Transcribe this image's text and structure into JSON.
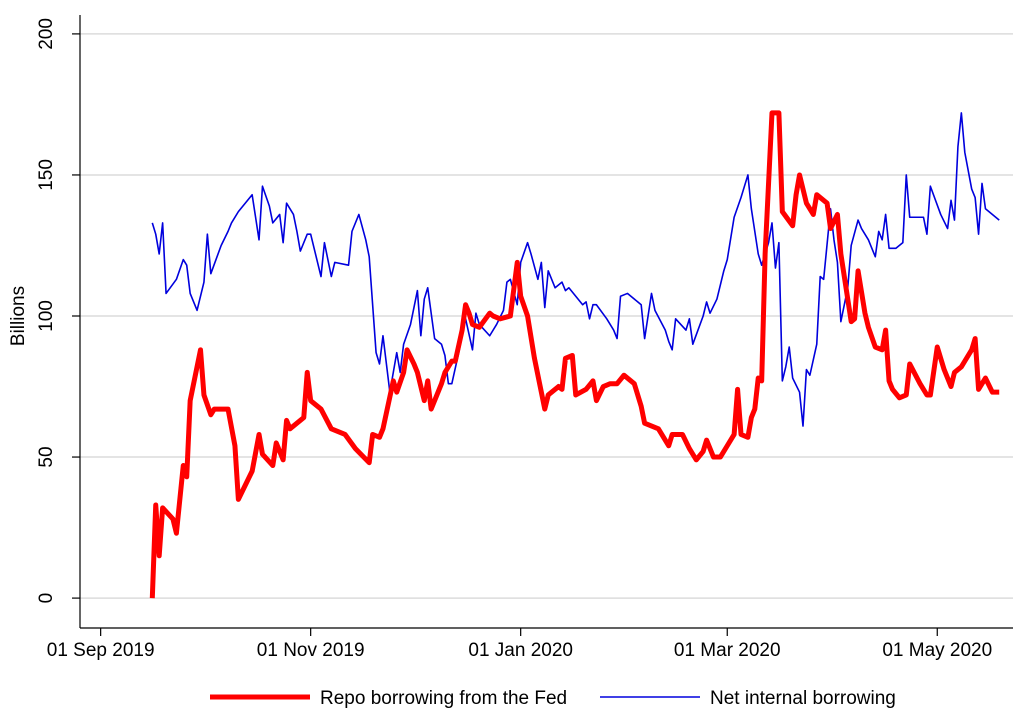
{
  "chart_data": {
    "type": "line",
    "y_label": "Billions",
    "xlim": [
      "2019-08-26",
      "2020-05-23"
    ],
    "xticks": [
      {
        "value": "2019-09-01",
        "label": "01 Sep 2019"
      },
      {
        "value": "2019-11-01",
        "label": "01 Nov 2019"
      },
      {
        "value": "2020-01-01",
        "label": "01 Jan 2020"
      },
      {
        "value": "2020-03-01",
        "label": "01 Mar 2020"
      },
      {
        "value": "2020-05-01",
        "label": "01 May 2020"
      }
    ],
    "ylim": [
      -10.6,
      206.7
    ],
    "yticks": [
      0,
      50,
      100,
      150,
      200
    ],
    "grid": true,
    "legend": "bottom",
    "series": [
      {
        "name": "Repo borrowing from the Fed",
        "color": "#ff0000",
        "width": 5,
        "x": [
          "2019-09-16",
          "2019-09-17",
          "2019-09-18",
          "2019-09-19",
          "2019-09-22",
          "2019-09-23",
          "2019-09-25",
          "2019-09-26",
          "2019-09-27",
          "2019-09-30",
          "2019-10-01",
          "2019-10-03",
          "2019-10-04",
          "2019-10-08",
          "2019-10-10",
          "2019-10-11",
          "2019-10-13",
          "2019-10-15",
          "2019-10-17",
          "2019-10-18",
          "2019-10-21",
          "2019-10-22",
          "2019-10-24",
          "2019-10-25",
          "2019-10-26",
          "2019-10-28",
          "2019-10-30",
          "2019-10-31",
          "2019-11-01",
          "2019-11-04",
          "2019-11-07",
          "2019-11-11",
          "2019-11-14",
          "2019-11-18",
          "2019-11-19",
          "2019-11-21",
          "2019-11-22",
          "2019-11-25",
          "2019-11-26",
          "2019-11-28",
          "2019-11-29",
          "2019-12-01",
          "2019-12-02",
          "2019-12-04",
          "2019-12-05",
          "2019-12-06",
          "2019-12-09",
          "2019-12-10",
          "2019-12-12",
          "2019-12-13",
          "2019-12-15",
          "2019-12-16",
          "2019-12-17",
          "2019-12-18",
          "2019-12-20",
          "2019-12-23",
          "2019-12-24",
          "2019-12-26",
          "2019-12-29",
          "2019-12-31",
          "2020-01-01",
          "2020-01-03",
          "2020-01-05",
          "2020-01-07",
          "2020-01-08",
          "2020-01-09",
          "2020-01-12",
          "2020-01-13",
          "2020-01-14",
          "2020-01-16",
          "2020-01-17",
          "2020-01-20",
          "2020-01-22",
          "2020-01-23",
          "2020-01-25",
          "2020-01-27",
          "2020-01-29",
          "2020-01-31",
          "2020-02-03",
          "2020-02-05",
          "2020-02-06",
          "2020-02-10",
          "2020-02-13",
          "2020-02-14",
          "2020-02-17",
          "2020-02-19",
          "2020-02-21",
          "2020-02-23",
          "2020-02-24",
          "2020-02-26",
          "2020-02-28",
          "2020-03-01",
          "2020-03-03",
          "2020-03-04",
          "2020-03-05",
          "2020-03-07",
          "2020-03-08",
          "2020-03-09",
          "2020-03-10",
          "2020-03-11",
          "2020-03-12",
          "2020-03-14",
          "2020-03-16",
          "2020-03-17",
          "2020-03-20",
          "2020-03-21",
          "2020-03-22",
          "2020-03-24",
          "2020-03-26",
          "2020-03-27",
          "2020-03-30",
          "2020-03-31",
          "2020-04-02",
          "2020-04-03",
          "2020-04-06",
          "2020-04-07",
          "2020-04-08",
          "2020-04-10",
          "2020-04-11",
          "2020-04-13",
          "2020-04-15",
          "2020-04-16",
          "2020-04-17",
          "2020-04-18",
          "2020-04-20",
          "2020-04-22",
          "2020-04-23",
          "2020-04-26",
          "2020-04-28",
          "2020-04-29",
          "2020-05-01",
          "2020-05-03",
          "2020-05-05",
          "2020-05-06",
          "2020-05-08",
          "2020-05-09",
          "2020-05-11",
          "2020-05-12",
          "2020-05-13",
          "2020-05-15",
          "2020-05-17",
          "2020-05-19"
        ],
        "values": [
          0,
          33,
          15,
          32,
          28,
          23,
          47,
          43,
          70,
          88,
          72,
          65,
          67,
          67,
          54,
          35,
          40,
          45,
          58,
          51,
          47,
          55,
          49,
          63,
          60,
          62,
          64,
          80,
          70,
          67,
          60,
          58,
          53,
          48,
          58,
          57,
          60,
          77,
          73,
          80,
          88,
          83,
          80,
          70,
          77,
          67,
          76,
          80,
          84,
          84,
          95,
          104,
          101,
          97,
          96,
          101,
          100,
          99,
          100,
          119,
          107,
          100,
          85,
          73,
          67,
          72,
          75,
          74,
          85,
          86,
          72,
          74,
          77,
          70,
          75,
          76,
          76,
          79,
          76,
          68,
          62,
          60,
          54,
          58,
          58,
          53,
          49,
          52,
          56,
          50,
          50,
          54,
          58,
          74,
          58,
          57,
          64,
          67,
          78,
          77,
          122,
          172,
          172,
          137,
          132,
          143,
          150,
          140,
          136,
          143,
          140,
          131,
          136,
          122,
          98,
          99,
          116,
          101,
          96,
          89,
          88,
          95,
          77,
          74,
          71,
          72,
          83,
          76,
          72,
          72,
          89,
          81,
          75,
          80,
          82,
          84,
          88,
          92,
          74,
          78,
          73,
          73
        ]
      },
      {
        "name": "Net internal borrowing",
        "color": "#0000dd",
        "width": 1.6,
        "x": [
          "2019-09-16",
          "2019-09-17",
          "2019-09-18",
          "2019-09-19",
          "2019-09-20",
          "2019-09-23",
          "2019-09-25",
          "2019-09-26",
          "2019-09-27",
          "2019-09-29",
          "2019-10-01",
          "2019-10-02",
          "2019-10-03",
          "2019-10-06",
          "2019-10-08",
          "2019-10-09",
          "2019-10-11",
          "2019-10-15",
          "2019-10-17",
          "2019-10-18",
          "2019-10-20",
          "2019-10-21",
          "2019-10-23",
          "2019-10-24",
          "2019-10-25",
          "2019-10-27",
          "2019-10-28",
          "2019-10-29",
          "2019-10-31",
          "2019-11-01",
          "2019-11-03",
          "2019-11-04",
          "2019-11-05",
          "2019-11-07",
          "2019-11-08",
          "2019-11-12",
          "2019-11-13",
          "2019-11-15",
          "2019-11-17",
          "2019-11-18",
          "2019-11-20",
          "2019-11-21",
          "2019-11-22",
          "2019-11-23",
          "2019-11-24",
          "2019-11-26",
          "2019-11-27",
          "2019-11-28",
          "2019-11-30",
          "2019-12-01",
          "2019-12-02",
          "2019-12-03",
          "2019-12-04",
          "2019-12-05",
          "2019-12-07",
          "2019-12-09",
          "2019-12-10",
          "2019-12-11",
          "2019-12-12",
          "2019-12-14",
          "2019-12-16",
          "2019-12-18",
          "2019-12-19",
          "2019-12-20",
          "2019-12-23",
          "2019-12-25",
          "2019-12-27",
          "2019-12-28",
          "2019-12-29",
          "2019-12-31",
          "2020-01-01",
          "2020-01-03",
          "2020-01-04",
          "2020-01-06",
          "2020-01-07",
          "2020-01-08",
          "2020-01-09",
          "2020-01-11",
          "2020-01-13",
          "2020-01-14",
          "2020-01-15",
          "2020-01-17",
          "2020-01-19",
          "2020-01-20",
          "2020-01-21",
          "2020-01-22",
          "2020-01-23",
          "2020-01-26",
          "2020-01-28",
          "2020-01-29",
          "2020-01-30",
          "2020-02-01",
          "2020-02-04",
          "2020-02-05",
          "2020-02-06",
          "2020-02-08",
          "2020-02-09",
          "2020-02-12",
          "2020-02-13",
          "2020-02-14",
          "2020-02-15",
          "2020-02-18",
          "2020-02-19",
          "2020-02-20",
          "2020-02-23",
          "2020-02-24",
          "2020-02-25",
          "2020-02-27",
          "2020-02-29",
          "2020-03-01",
          "2020-03-03",
          "2020-03-05",
          "2020-03-07",
          "2020-03-08",
          "2020-03-10",
          "2020-03-11",
          "2020-03-13",
          "2020-03-14",
          "2020-03-15",
          "2020-03-16",
          "2020-03-17",
          "2020-03-18",
          "2020-03-19",
          "2020-03-20",
          "2020-03-22",
          "2020-03-23",
          "2020-03-24",
          "2020-03-25",
          "2020-03-27",
          "2020-03-28",
          "2020-03-29",
          "2020-03-31",
          "2020-04-01",
          "2020-04-02",
          "2020-04-03",
          "2020-04-05",
          "2020-04-06",
          "2020-04-08",
          "2020-04-09",
          "2020-04-11",
          "2020-04-12",
          "2020-04-13",
          "2020-04-14",
          "2020-04-15",
          "2020-04-16",
          "2020-04-17",
          "2020-04-19",
          "2020-04-21",
          "2020-04-22",
          "2020-04-23",
          "2020-04-27",
          "2020-04-28",
          "2020-04-29",
          "2020-05-02",
          "2020-05-04",
          "2020-05-05",
          "2020-05-06",
          "2020-05-07",
          "2020-05-08",
          "2020-05-09",
          "2020-05-11",
          "2020-05-12",
          "2020-05-13",
          "2020-05-14",
          "2020-05-15",
          "2020-05-19"
        ],
        "values": [
          133,
          129,
          122,
          133,
          108,
          113,
          120,
          118,
          108,
          102,
          112,
          129,
          115,
          125,
          130,
          133,
          137,
          143,
          127,
          146,
          139,
          133,
          136,
          126,
          140,
          136,
          130,
          123,
          129,
          129,
          119,
          114,
          126,
          114,
          119,
          118,
          130,
          136,
          127,
          121,
          87,
          83,
          93,
          83,
          73,
          87,
          80,
          90,
          97,
          103,
          109,
          93,
          106,
          110,
          92,
          90,
          86,
          76,
          76,
          87,
          99,
          88,
          101,
          97,
          93,
          97,
          102,
          112,
          113,
          104,
          119,
          126,
          122,
          113,
          119,
          103,
          116,
          110,
          112,
          109,
          110,
          107,
          104,
          105,
          99,
          104,
          104,
          99,
          95,
          92,
          107,
          108,
          105,
          104,
          92,
          108,
          102,
          95,
          91,
          88,
          99,
          95,
          99,
          90,
          100,
          105,
          101,
          106,
          116,
          120,
          135,
          142,
          150,
          138,
          122,
          118,
          126,
          133,
          117,
          126,
          77,
          82,
          89,
          78,
          73,
          61,
          81,
          79,
          90,
          114,
          113,
          138,
          127,
          119,
          98,
          110,
          125,
          134,
          131,
          127,
          124,
          121,
          130,
          127,
          136,
          124,
          124,
          126,
          150,
          135,
          135,
          129,
          146,
          136,
          131,
          141,
          134,
          160,
          172,
          158,
          145,
          142,
          129,
          147,
          138,
          134
        ]
      }
    ]
  }
}
